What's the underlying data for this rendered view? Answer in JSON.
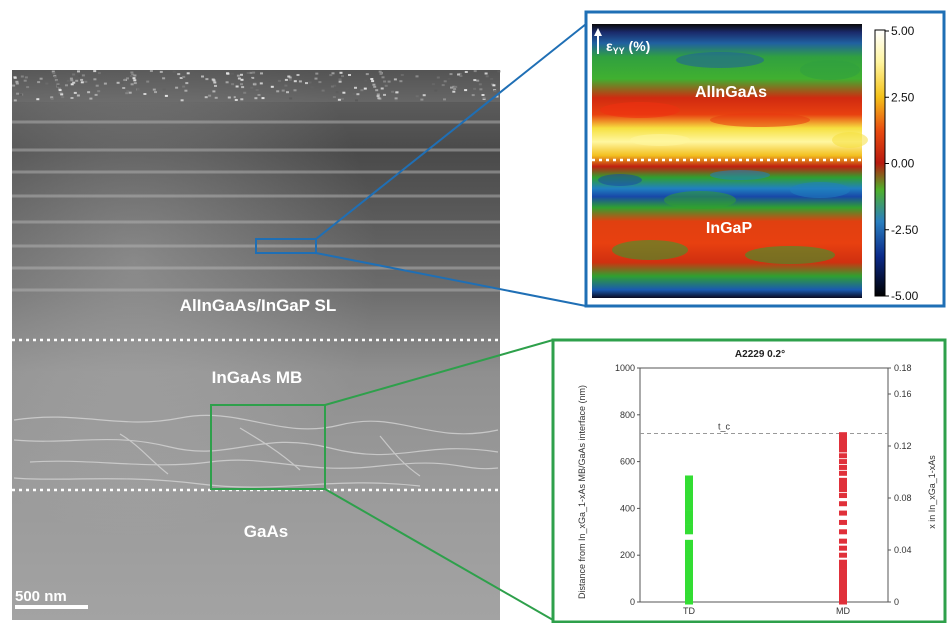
{
  "tem": {
    "labels": {
      "sl": "AlInGaAs/InGaP SL",
      "mb": "InGaAs MB",
      "sub": "GaAs"
    },
    "scalebar": "500 nm"
  },
  "strain_map": {
    "axis_label": "ε",
    "axis_sub": "YY",
    "axis_unit": " (%)",
    "top_layer": "AlInGaAs",
    "bottom_layer": "InGaP",
    "colorbar_ticks": [
      "5.00",
      "2.50",
      "0.00",
      "-2.50",
      "-5.00"
    ]
  },
  "chart_data": {
    "type": "scatter",
    "title": "A2229 0.2°",
    "categories": [
      "TD",
      "MD"
    ],
    "ylabel_left": "Distance from In_xGa_1-xAs MB/GaAs interface (nm)",
    "ylabel_right": "x in In_xGa_1-xAs",
    "ylim": [
      0,
      1000
    ],
    "yticks_left": [
      "1000",
      "800",
      "600",
      "400",
      "200",
      "0"
    ],
    "yticks_left_values": [
      1000,
      800,
      600,
      400,
      200,
      0
    ],
    "ylim_right": [
      0,
      0.18
    ],
    "yticks_right": [
      "0.18",
      "0.16",
      "0.12",
      "0.08",
      "0.04",
      "0"
    ],
    "yticks_right_values": [
      0.18,
      0.16,
      0.12,
      0.08,
      0.04,
      0
    ],
    "reference_line": {
      "label": "t_c",
      "value": 720
    },
    "series": [
      {
        "category": "TD",
        "color": "#33dd33",
        "values": [
          0,
          15,
          30,
          45,
          60,
          75,
          90,
          105,
          120,
          135,
          150,
          165,
          180,
          195,
          210,
          225,
          240,
          255,
          300,
          320,
          340,
          360,
          380,
          400,
          420,
          440,
          460,
          480,
          500,
          515,
          530
        ]
      },
      {
        "category": "MD",
        "color": "#e0303a",
        "values": [
          0,
          10,
          20,
          30,
          45,
          60,
          75,
          90,
          110,
          130,
          150,
          170,
          200,
          230,
          260,
          300,
          340,
          380,
          420,
          455,
          480,
          500,
          520,
          550,
          575,
          600,
          625,
          650,
          670,
          690,
          705,
          715
        ]
      }
    ]
  },
  "colors": {
    "blue_inset": "#1f6fb5",
    "green_inset": "#2ea04b"
  }
}
